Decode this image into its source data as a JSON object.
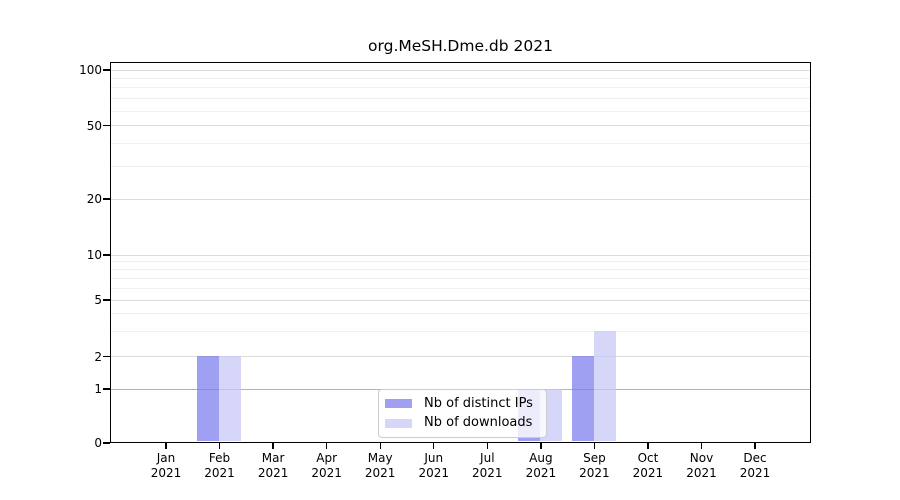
{
  "chart_data": {
    "type": "bar",
    "title": "org.MeSH.Dme.db 2021",
    "categories": [
      "Jan",
      "Feb",
      "Mar",
      "Apr",
      "May",
      "Jun",
      "Jul",
      "Aug",
      "Sep",
      "Oct",
      "Nov",
      "Dec"
    ],
    "category_year": "2021",
    "series": [
      {
        "name": "Nb of distinct IPs",
        "color": "rgba(124,124,238,0.72)",
        "values": [
          0,
          2,
          0,
          0,
          0,
          0,
          0,
          1,
          2,
          0,
          0,
          0
        ]
      },
      {
        "name": "Nb of downloads",
        "color": "rgba(198,198,247,0.72)",
        "values": [
          0,
          2,
          0,
          0,
          0,
          0,
          0,
          1,
          3,
          0,
          0,
          0
        ]
      }
    ],
    "y_axis": {
      "scale": "symlog",
      "ticks": [
        0,
        1,
        2,
        5,
        10,
        20,
        50,
        100
      ],
      "range": [
        0,
        100
      ]
    },
    "legend": {
      "position": "lower-center"
    },
    "grid": true
  }
}
